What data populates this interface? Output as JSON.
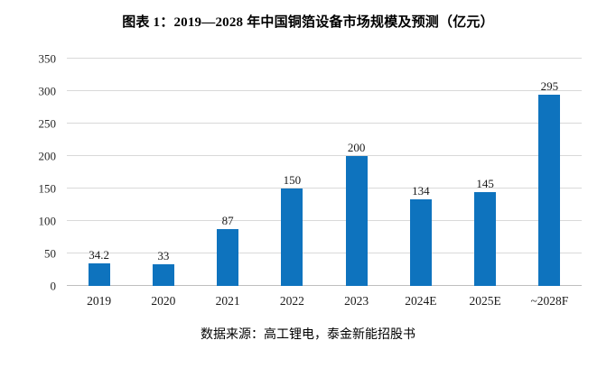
{
  "title": "图表 1：2019—2028 年中国铜箔设备市场规模及预测（亿元）",
  "source": "数据来源：高工锂电，泰金新能招股书",
  "chart_data": {
    "type": "bar",
    "title": "图表 1：2019—2028 年中国铜箔设备市场规模及预测（亿元）",
    "categories": [
      "2019",
      "2020",
      "2021",
      "2022",
      "2023",
      "2024E",
      "2025E",
      "~2028F"
    ],
    "values": [
      34.2,
      33,
      87,
      150,
      200,
      134,
      145,
      295
    ],
    "data_labels": [
      "34.2",
      "33",
      "87",
      "150",
      "200",
      "134",
      "145",
      "295"
    ],
    "xlabel": "",
    "ylabel": "",
    "ylim": [
      0,
      350
    ],
    "ytick_step": 50,
    "yticks": [
      0,
      50,
      100,
      150,
      200,
      250,
      300,
      350
    ],
    "grid": "horizontal",
    "legend": "none",
    "bar_color": "#0e73be",
    "gridline_color": "#d9d9d9",
    "axis_line_color": "#bfbfbf",
    "source_note": "数据来源：高工锂电，泰金新能招股书"
  }
}
